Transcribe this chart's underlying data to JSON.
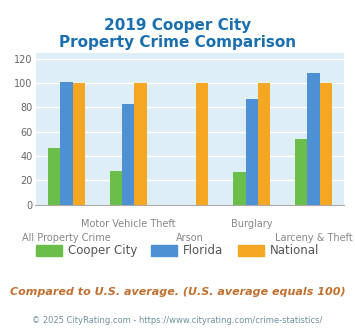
{
  "title_line1": "2019 Cooper City",
  "title_line2": "Property Crime Comparison",
  "title_color": "#1a6faf",
  "categories": [
    "All Property Crime",
    "Motor Vehicle Theft",
    "Arson",
    "Burglary",
    "Larceny & Theft"
  ],
  "top_labels": [
    "",
    "Motor Vehicle Theft",
    "",
    "Burglary",
    ""
  ],
  "bottom_labels": [
    "All Property Crime",
    "",
    "Arson",
    "",
    "Larceny & Theft"
  ],
  "cooper_city": [
    47,
    28,
    0,
    27,
    54
  ],
  "florida": [
    101,
    83,
    0,
    87,
    108
  ],
  "national": [
    100,
    100,
    100,
    100,
    100
  ],
  "bar_colors": {
    "cooper_city": "#6abf4b",
    "florida": "#4d90d4",
    "national": "#f5a623"
  },
  "ylim": [
    0,
    125
  ],
  "yticks": [
    0,
    20,
    40,
    60,
    80,
    100,
    120
  ],
  "plot_bg": "#ddeef6",
  "grid_color": "#ffffff",
  "footnote1": "Compared to U.S. average. (U.S. average equals 100)",
  "footnote2": "© 2025 CityRating.com - https://www.cityrating.com/crime-statistics/",
  "footnote1_color": "#c07030",
  "footnote2_color": "#7090a0",
  "legend_labels": [
    "Cooper City",
    "Florida",
    "National"
  ],
  "bar_width": 0.2
}
